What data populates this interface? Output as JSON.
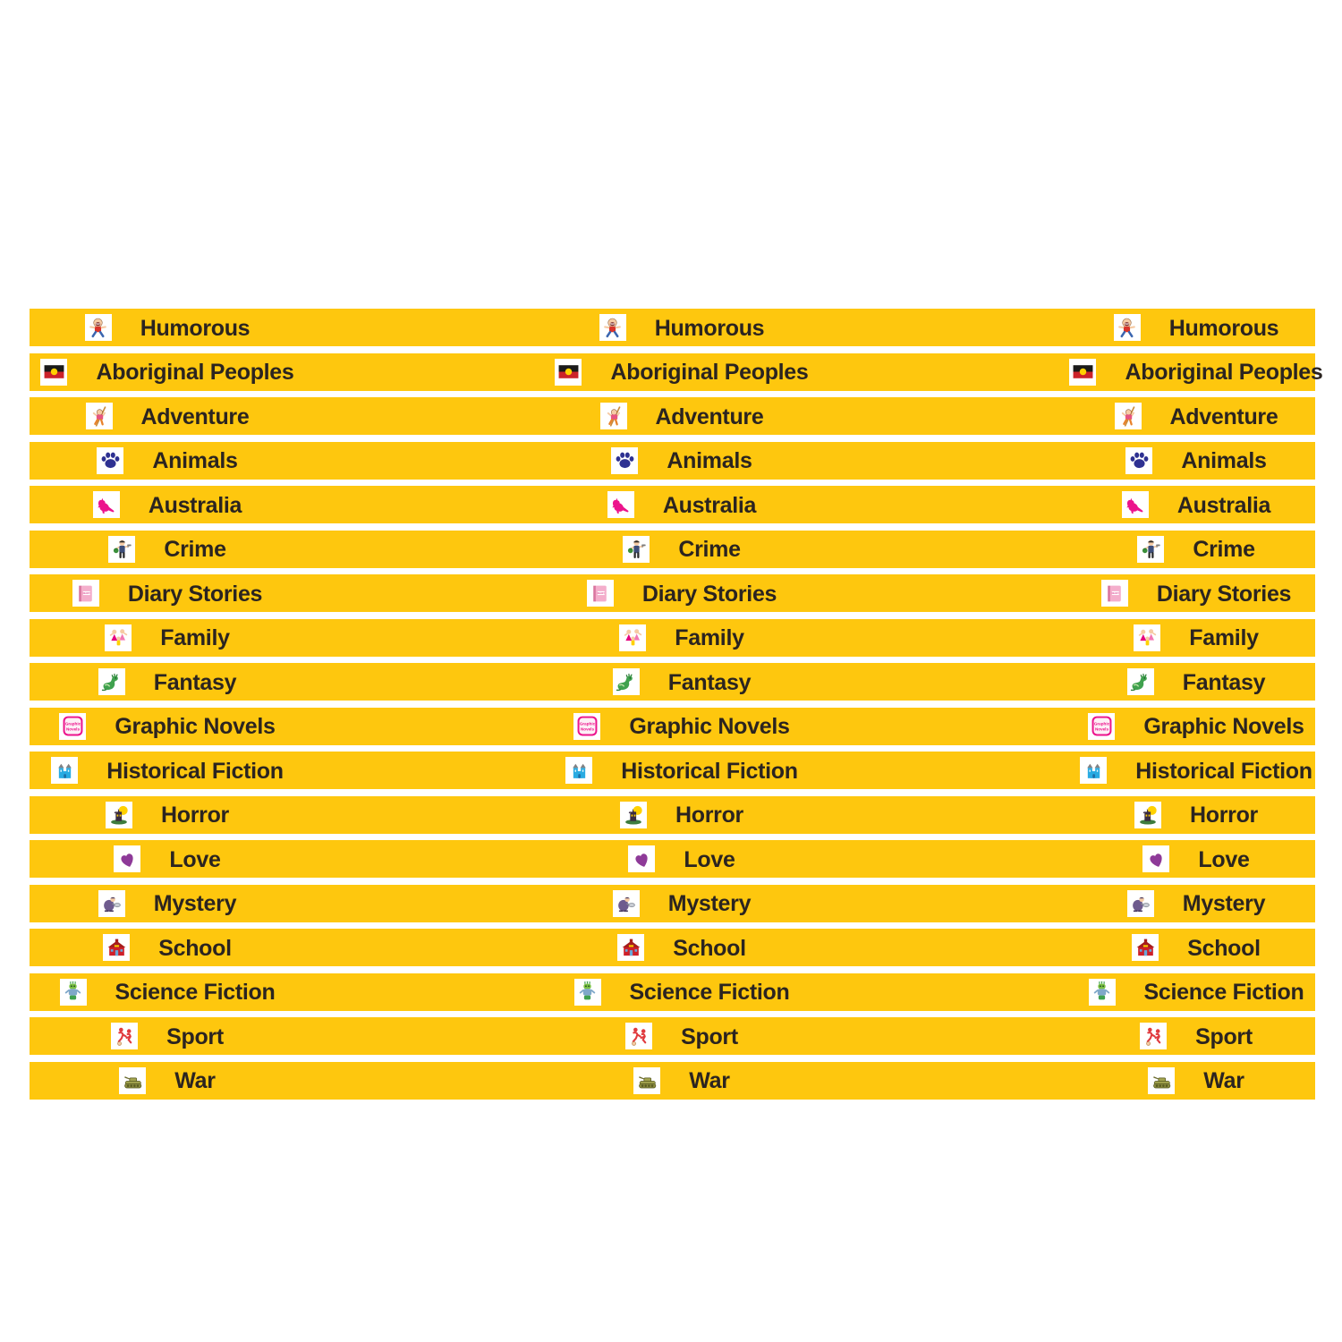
{
  "colors": {
    "strip_yellow": "#FEC70E",
    "label_text": "#2B2420",
    "page_background": "#FFFFFF",
    "icon_box_background": "#FFFFFF"
  },
  "sheet": {
    "columns_per_strip": 3,
    "strip_count": 18
  },
  "strips": [
    {
      "label": "Humorous",
      "icon": "humorous-icon"
    },
    {
      "label": "Aboriginal Peoples",
      "icon": "aboriginal-flag-icon"
    },
    {
      "label": "Adventure",
      "icon": "adventure-icon"
    },
    {
      "label": "Animals",
      "icon": "animals-paw-icon"
    },
    {
      "label": "Australia",
      "icon": "australia-kangaroo-icon"
    },
    {
      "label": "Crime",
      "icon": "crime-icon"
    },
    {
      "label": "Diary Stories",
      "icon": "diary-icon",
      "icon_text": [
        "DIARY"
      ]
    },
    {
      "label": "Family",
      "icon": "family-icon"
    },
    {
      "label": "Fantasy",
      "icon": "fantasy-dragon-icon"
    },
    {
      "label": "Graphic Novels",
      "icon": "graphic-novels-icon",
      "icon_text": [
        "Graphic",
        "Novels"
      ]
    },
    {
      "label": "Historical Fiction",
      "icon": "historical-fiction-icon"
    },
    {
      "label": "Horror",
      "icon": "horror-icon"
    },
    {
      "label": "Love",
      "icon": "love-heart-icon"
    },
    {
      "label": "Mystery",
      "icon": "mystery-icon"
    },
    {
      "label": "School",
      "icon": "school-icon"
    },
    {
      "label": "Science Fiction",
      "icon": "science-fiction-icon"
    },
    {
      "label": "Sport",
      "icon": "sport-icon"
    },
    {
      "label": "War",
      "icon": "war-tank-icon"
    }
  ]
}
